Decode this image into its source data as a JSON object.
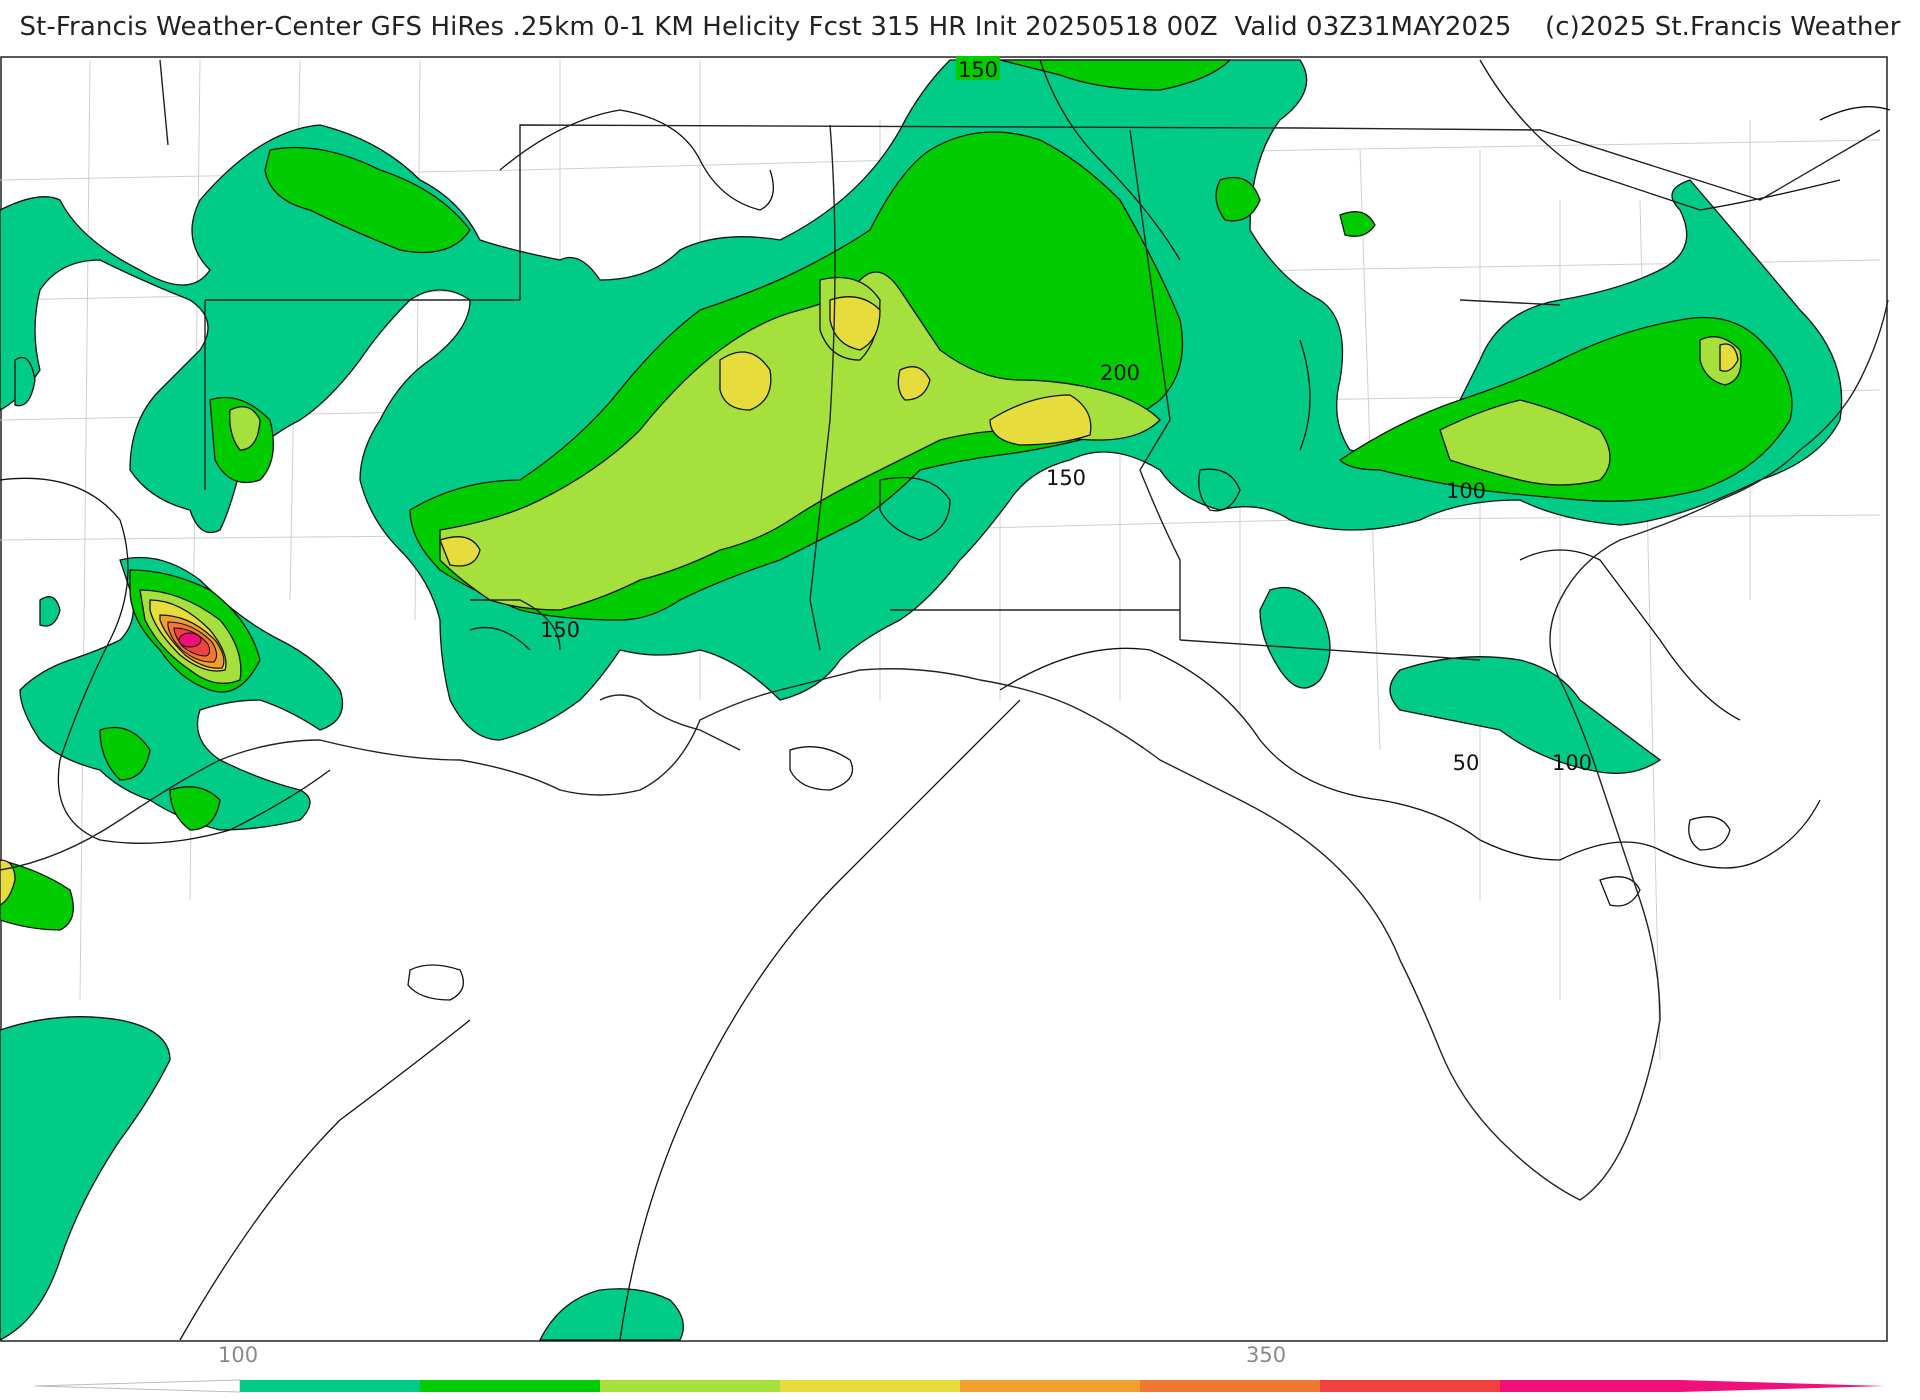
{
  "header": {
    "title": "St-Francis Weather-Center GFS HiRes .25km 0-1 KM Helicity Fcst 315 HR Init 20250518 00Z  Valid 03Z31MAY2025    (c)2025 St.Francis Weather"
  },
  "colors": {
    "c100": "#00cc88",
    "c150": "#00cc00",
    "c200": "#a6e03c",
    "c250": "#e6dc3c",
    "c300": "#f0a030",
    "c350": "#f07830",
    "c400": "#f04040",
    "c450": "#f0107a",
    "contour": "#111111",
    "border": "#222222",
    "county": "#bbbbbb"
  },
  "map": {
    "contour_labels": [
      {
        "id": "lbl-150-top",
        "text": "150"
      },
      {
        "id": "lbl-200",
        "text": "200"
      },
      {
        "id": "lbl-150-al",
        "text": "150"
      },
      {
        "id": "lbl-150-la",
        "text": "150"
      },
      {
        "id": "lbl-100-nc",
        "text": "100"
      },
      {
        "id": "lbl-50-ga",
        "text": "50"
      },
      {
        "id": "lbl-100-ga",
        "text": "100"
      }
    ]
  },
  "colorbar": {
    "tick_labels": [
      "100",
      "350"
    ],
    "bins": [
      "c100",
      "c150",
      "c200",
      "c250",
      "c300",
      "c350",
      "c400",
      "c450"
    ]
  }
}
